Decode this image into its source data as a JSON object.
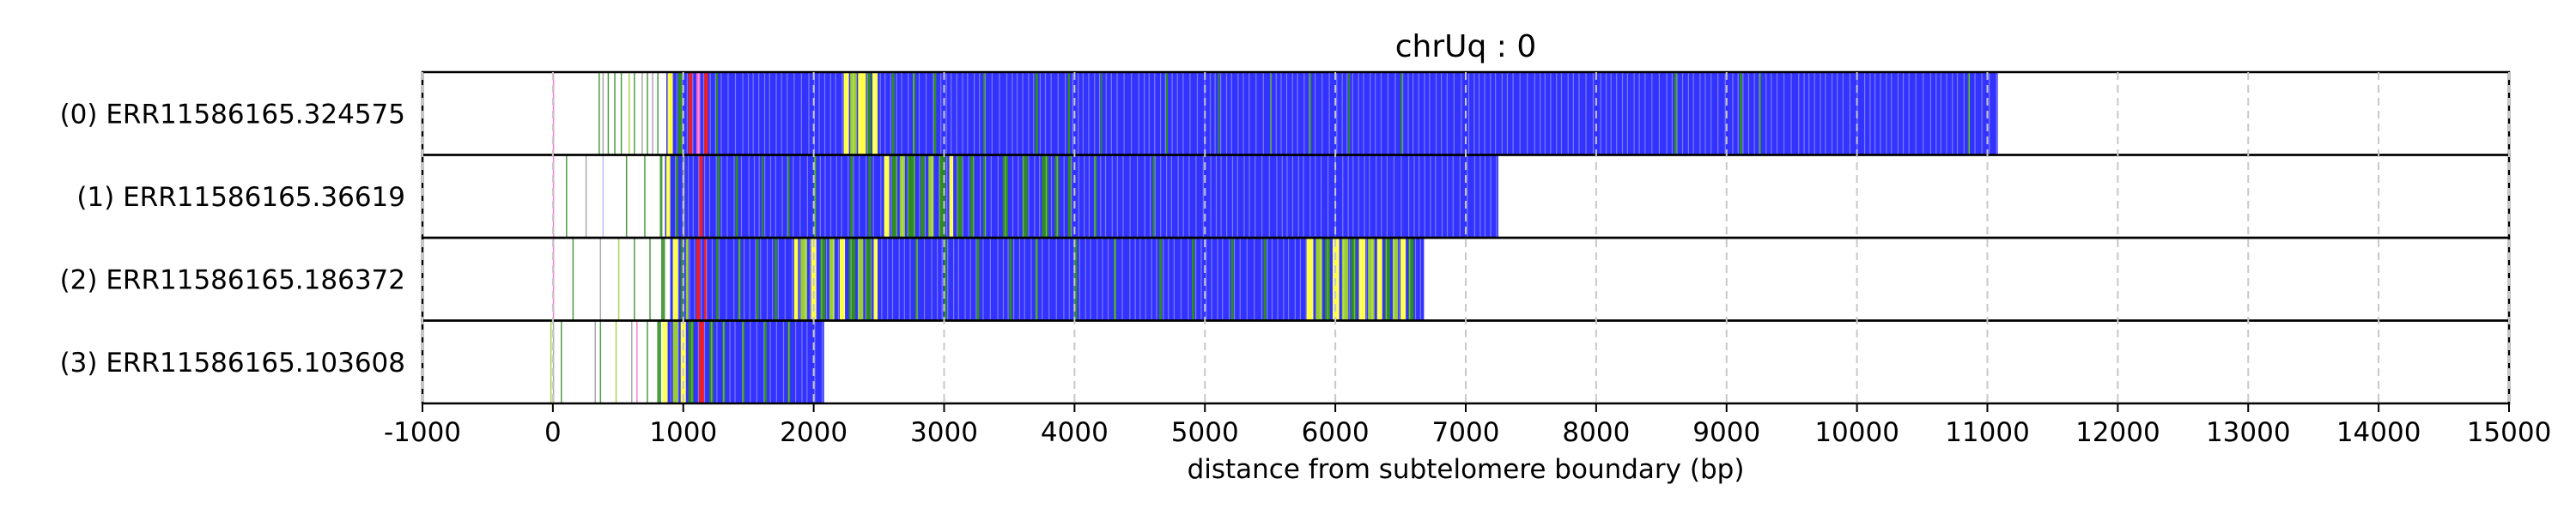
{
  "chart_data": {
    "type": "heatmap",
    "title": "chrUq : 0",
    "xlabel": "distance from subtelomere boundary (bp)",
    "ylabel": "",
    "xlim": [
      -1000,
      15000
    ],
    "xticks": [
      -1000,
      0,
      1000,
      2000,
      3000,
      4000,
      5000,
      6000,
      7000,
      8000,
      9000,
      10000,
      11000,
      12000,
      13000,
      14000,
      15000
    ],
    "grid": "vertical dashed lines at each tick",
    "legend": "none",
    "colors": {
      "background": "#ffffff",
      "blue": "#3333ff",
      "green": "#2e8b22",
      "lightgreen": "#9acd32",
      "yellow": "#ffff44",
      "red": "#e8202a",
      "pink": "#ff66cc",
      "gray": "#9a9a9a",
      "lavender": "#aab4ff"
    },
    "rows": [
      {
        "label": "(0) ERR11586165.324575",
        "start": 0,
        "end": 11080,
        "blue_start": 870,
        "segments": [
          {
            "from": 0,
            "to": 10,
            "color": "pink"
          },
          {
            "from": 350,
            "to": 358,
            "color": "green"
          },
          {
            "from": 380,
            "to": 386,
            "color": "gray"
          },
          {
            "from": 420,
            "to": 426,
            "color": "green"
          },
          {
            "from": 470,
            "to": 476,
            "color": "green"
          },
          {
            "from": 520,
            "to": 528,
            "color": "green"
          },
          {
            "from": 580,
            "to": 585,
            "color": "lightgreen"
          },
          {
            "from": 620,
            "to": 628,
            "color": "green"
          },
          {
            "from": 680,
            "to": 684,
            "color": "gray"
          },
          {
            "from": 720,
            "to": 728,
            "color": "green"
          },
          {
            "from": 760,
            "to": 768,
            "color": "gray"
          },
          {
            "from": 800,
            "to": 808,
            "color": "green"
          },
          {
            "from": 880,
            "to": 920,
            "color": "yellow"
          },
          {
            "from": 960,
            "to": 990,
            "color": "green"
          },
          {
            "from": 1040,
            "to": 1070,
            "color": "red"
          },
          {
            "from": 1100,
            "to": 1130,
            "color": "pink"
          },
          {
            "from": 1160,
            "to": 1190,
            "color": "red"
          },
          {
            "from": 1250,
            "to": 1265,
            "color": "green"
          },
          {
            "from": 2230,
            "to": 2270,
            "color": "yellow"
          },
          {
            "from": 2280,
            "to": 2330,
            "color": "lightgreen"
          },
          {
            "from": 2340,
            "to": 2400,
            "color": "yellow"
          },
          {
            "from": 2410,
            "to": 2440,
            "color": "green"
          },
          {
            "from": 2450,
            "to": 2490,
            "color": "yellow"
          },
          {
            "from": 2600,
            "to": 2620,
            "color": "green"
          },
          {
            "from": 2760,
            "to": 2780,
            "color": "green"
          },
          {
            "from": 2920,
            "to": 2940,
            "color": "green"
          },
          {
            "from": 3300,
            "to": 3315,
            "color": "green"
          },
          {
            "from": 3700,
            "to": 3720,
            "color": "green"
          },
          {
            "from": 3950,
            "to": 3965,
            "color": "green"
          },
          {
            "from": 4200,
            "to": 4212,
            "color": "green"
          },
          {
            "from": 4700,
            "to": 4715,
            "color": "green"
          },
          {
            "from": 5100,
            "to": 5112,
            "color": "green"
          },
          {
            "from": 5500,
            "to": 5512,
            "color": "green"
          },
          {
            "from": 5800,
            "to": 5815,
            "color": "green"
          },
          {
            "from": 6100,
            "to": 6112,
            "color": "green"
          },
          {
            "from": 6500,
            "to": 6515,
            "color": "green"
          },
          {
            "from": 8600,
            "to": 8620,
            "color": "green"
          },
          {
            "from": 9100,
            "to": 9120,
            "color": "green"
          },
          {
            "from": 9250,
            "to": 9265,
            "color": "green"
          },
          {
            "from": 10850,
            "to": 10865,
            "color": "green"
          }
        ]
      },
      {
        "label": "(1) ERR11586165.36619",
        "start": 0,
        "end": 7250,
        "blue_start": 860,
        "segments": [
          {
            "from": 0,
            "to": 8,
            "color": "pink"
          },
          {
            "from": 100,
            "to": 106,
            "color": "green"
          },
          {
            "from": 250,
            "to": 255,
            "color": "gray"
          },
          {
            "from": 380,
            "to": 386,
            "color": "lavender"
          },
          {
            "from": 560,
            "to": 566,
            "color": "green"
          },
          {
            "from": 700,
            "to": 706,
            "color": "green"
          },
          {
            "from": 820,
            "to": 840,
            "color": "green"
          },
          {
            "from": 870,
            "to": 900,
            "color": "yellow"
          },
          {
            "from": 940,
            "to": 960,
            "color": "green"
          },
          {
            "from": 1000,
            "to": 1010,
            "color": "lightgreen"
          },
          {
            "from": 1120,
            "to": 1150,
            "color": "red"
          },
          {
            "from": 1260,
            "to": 1280,
            "color": "green"
          },
          {
            "from": 1400,
            "to": 1420,
            "color": "green"
          },
          {
            "from": 1600,
            "to": 1615,
            "color": "green"
          },
          {
            "from": 1800,
            "to": 1815,
            "color": "green"
          },
          {
            "from": 2000,
            "to": 2020,
            "color": "green"
          },
          {
            "from": 2280,
            "to": 2300,
            "color": "green"
          },
          {
            "from": 2420,
            "to": 2440,
            "color": "green"
          },
          {
            "from": 2540,
            "to": 2580,
            "color": "yellow"
          },
          {
            "from": 2600,
            "to": 2640,
            "color": "green"
          },
          {
            "from": 2660,
            "to": 2700,
            "color": "lightgreen"
          },
          {
            "from": 2720,
            "to": 2780,
            "color": "green"
          },
          {
            "from": 2820,
            "to": 2850,
            "color": "green"
          },
          {
            "from": 2880,
            "to": 2920,
            "color": "lightgreen"
          },
          {
            "from": 2960,
            "to": 3010,
            "color": "green"
          },
          {
            "from": 3040,
            "to": 3070,
            "color": "yellow"
          },
          {
            "from": 3100,
            "to": 3140,
            "color": "green"
          },
          {
            "from": 3200,
            "to": 3230,
            "color": "green"
          },
          {
            "from": 3300,
            "to": 3320,
            "color": "green"
          },
          {
            "from": 3450,
            "to": 3490,
            "color": "green"
          },
          {
            "from": 3600,
            "to": 3640,
            "color": "green"
          },
          {
            "from": 3750,
            "to": 3800,
            "color": "green"
          },
          {
            "from": 3850,
            "to": 3880,
            "color": "green"
          },
          {
            "from": 3950,
            "to": 3975,
            "color": "green"
          },
          {
            "from": 4150,
            "to": 4170,
            "color": "green"
          },
          {
            "from": 4600,
            "to": 4615,
            "color": "green"
          }
        ]
      },
      {
        "label": "(2) ERR11586165.186372",
        "start": 0,
        "end": 6680,
        "blue_start": 900,
        "segments": [
          {
            "from": 0,
            "to": 8,
            "color": "pink"
          },
          {
            "from": 150,
            "to": 156,
            "color": "green"
          },
          {
            "from": 360,
            "to": 366,
            "color": "gray"
          },
          {
            "from": 500,
            "to": 506,
            "color": "lightgreen"
          },
          {
            "from": 620,
            "to": 628,
            "color": "green"
          },
          {
            "from": 740,
            "to": 748,
            "color": "green"
          },
          {
            "from": 830,
            "to": 860,
            "color": "green"
          },
          {
            "from": 920,
            "to": 960,
            "color": "yellow"
          },
          {
            "from": 980,
            "to": 1000,
            "color": "green"
          },
          {
            "from": 1020,
            "to": 1040,
            "color": "lightgreen"
          },
          {
            "from": 1100,
            "to": 1130,
            "color": "red"
          },
          {
            "from": 1160,
            "to": 1180,
            "color": "red"
          },
          {
            "from": 1250,
            "to": 1270,
            "color": "green"
          },
          {
            "from": 1420,
            "to": 1440,
            "color": "green"
          },
          {
            "from": 1560,
            "to": 1580,
            "color": "green"
          },
          {
            "from": 1700,
            "to": 1720,
            "color": "green"
          },
          {
            "from": 1850,
            "to": 1880,
            "color": "yellow"
          },
          {
            "from": 1900,
            "to": 1950,
            "color": "lightgreen"
          },
          {
            "from": 1980,
            "to": 2020,
            "color": "yellow"
          },
          {
            "from": 2050,
            "to": 2090,
            "color": "green"
          },
          {
            "from": 2120,
            "to": 2160,
            "color": "lightgreen"
          },
          {
            "from": 2200,
            "to": 2240,
            "color": "yellow"
          },
          {
            "from": 2270,
            "to": 2320,
            "color": "green"
          },
          {
            "from": 2340,
            "to": 2380,
            "color": "lightgreen"
          },
          {
            "from": 2400,
            "to": 2440,
            "color": "green"
          },
          {
            "from": 2460,
            "to": 2490,
            "color": "yellow"
          },
          {
            "from": 2780,
            "to": 2800,
            "color": "green"
          },
          {
            "from": 3000,
            "to": 3020,
            "color": "green"
          },
          {
            "from": 3250,
            "to": 3270,
            "color": "green"
          },
          {
            "from": 3500,
            "to": 3520,
            "color": "green"
          },
          {
            "from": 3700,
            "to": 3720,
            "color": "green"
          },
          {
            "from": 4000,
            "to": 4020,
            "color": "green"
          },
          {
            "from": 4300,
            "to": 4320,
            "color": "green"
          },
          {
            "from": 4650,
            "to": 4670,
            "color": "green"
          },
          {
            "from": 4900,
            "to": 4920,
            "color": "green"
          },
          {
            "from": 5200,
            "to": 5220,
            "color": "green"
          },
          {
            "from": 5450,
            "to": 5470,
            "color": "green"
          },
          {
            "from": 5780,
            "to": 5830,
            "color": "yellow"
          },
          {
            "from": 5850,
            "to": 5900,
            "color": "lightgreen"
          },
          {
            "from": 5920,
            "to": 5960,
            "color": "green"
          },
          {
            "from": 5980,
            "to": 6030,
            "color": "yellow"
          },
          {
            "from": 6050,
            "to": 6100,
            "color": "lightgreen"
          },
          {
            "from": 6120,
            "to": 6160,
            "color": "green"
          },
          {
            "from": 6180,
            "to": 6230,
            "color": "yellow"
          },
          {
            "from": 6250,
            "to": 6300,
            "color": "lightgreen"
          },
          {
            "from": 6320,
            "to": 6360,
            "color": "yellow"
          },
          {
            "from": 6380,
            "to": 6420,
            "color": "green"
          },
          {
            "from": 6440,
            "to": 6480,
            "color": "lightgreen"
          },
          {
            "from": 6500,
            "to": 6540,
            "color": "yellow"
          },
          {
            "from": 6560,
            "to": 6600,
            "color": "green"
          }
        ]
      },
      {
        "label": "(3) ERR11586165.103608",
        "start": 0,
        "end": 2080,
        "blue_start": 880,
        "segments": [
          {
            "from": -20,
            "to": -14,
            "color": "lightgreen"
          },
          {
            "from": 0,
            "to": 6,
            "color": "gray"
          },
          {
            "from": 60,
            "to": 66,
            "color": "green"
          },
          {
            "from": 320,
            "to": 326,
            "color": "gray"
          },
          {
            "from": 360,
            "to": 366,
            "color": "green"
          },
          {
            "from": 480,
            "to": 486,
            "color": "lightgreen"
          },
          {
            "from": 600,
            "to": 610,
            "color": "gray"
          },
          {
            "from": 640,
            "to": 648,
            "color": "pink"
          },
          {
            "from": 720,
            "to": 728,
            "color": "green"
          },
          {
            "from": 800,
            "to": 830,
            "color": "green"
          },
          {
            "from": 840,
            "to": 880,
            "color": "yellow"
          },
          {
            "from": 920,
            "to": 960,
            "color": "lightgreen"
          },
          {
            "from": 980,
            "to": 1020,
            "color": "yellow"
          },
          {
            "from": 1040,
            "to": 1080,
            "color": "green"
          },
          {
            "from": 1120,
            "to": 1160,
            "color": "red"
          },
          {
            "from": 1200,
            "to": 1230,
            "color": "green"
          },
          {
            "from": 1300,
            "to": 1320,
            "color": "green"
          },
          {
            "from": 1450,
            "to": 1470,
            "color": "green"
          },
          {
            "from": 1620,
            "to": 1640,
            "color": "green"
          },
          {
            "from": 1800,
            "to": 1820,
            "color": "green"
          }
        ]
      }
    ]
  }
}
